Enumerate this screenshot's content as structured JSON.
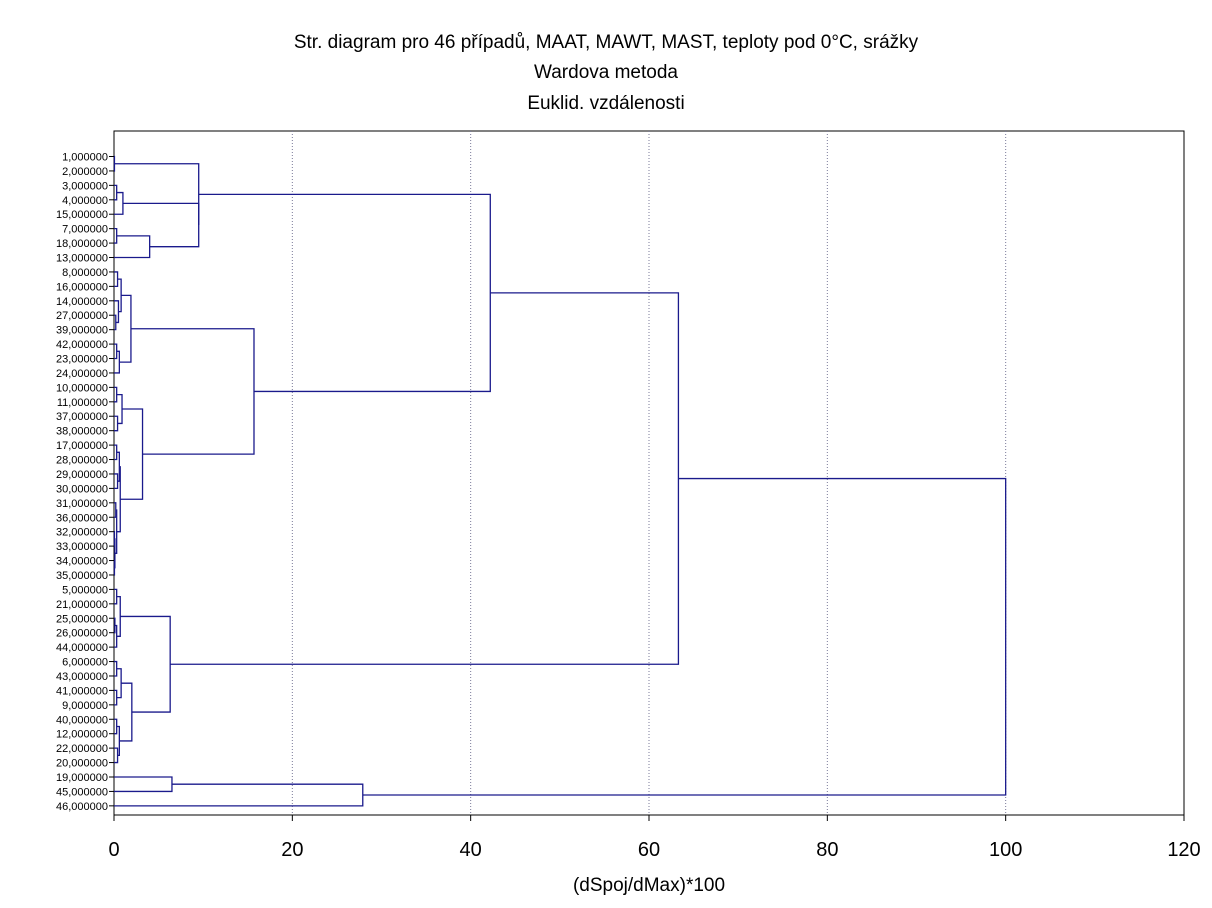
{
  "chart_data": {
    "type": "dendrogram",
    "title": "Str. diagram pro 46 případů, MAAT, MAWT, MAST, teploty pod 0°C, srážky",
    "subtitle": "Wardova metoda",
    "subtitle2": "Euklid. vzdálenosti",
    "xlabel": "(dSpoj/dMax)*100",
    "xlim": [
      0,
      120
    ],
    "xticks": [
      "0",
      "20",
      "40",
      "60",
      "80",
      "100",
      "120"
    ],
    "grid": "vertical-dotted",
    "line_color": "#1a1a8c",
    "leaves": [
      "1,000000",
      "2,000000",
      "3,000000",
      "4,000000",
      "15,000000",
      "7,000000",
      "18,000000",
      "13,000000",
      "8,000000",
      "16,000000",
      "14,000000",
      "27,000000",
      "39,000000",
      "42,000000",
      "23,000000",
      "24,000000",
      "10,000000",
      "11,000000",
      "37,000000",
      "38,000000",
      "17,000000",
      "28,000000",
      "29,000000",
      "30,000000",
      "31,000000",
      "36,000000",
      "32,000000",
      "33,000000",
      "34,000000",
      "35,000000",
      "5,000000",
      "21,000000",
      "25,000000",
      "26,000000",
      "44,000000",
      "6,000000",
      "43,000000",
      "41,000000",
      "9,000000",
      "40,000000",
      "12,000000",
      "22,000000",
      "20,000000",
      "19,000000",
      "45,000000",
      "46,000000"
    ],
    "merges": [
      {
        "a": 0,
        "b": 1,
        "h": 0.05
      },
      {
        "a": 2,
        "b": 3,
        "h": 0.3
      },
      {
        "a": "m1",
        "b": 4,
        "h": 1.0
      },
      {
        "a": 5,
        "b": 6,
        "h": 0.3
      },
      {
        "a": "m3",
        "b": 7,
        "h": 4.0
      },
      {
        "a": "m2",
        "b": "m4",
        "h": 9.5
      },
      {
        "a": "m0",
        "b": "m5",
        "h": 9.5
      },
      {
        "a": 8,
        "b": 9,
        "h": 0.4
      },
      {
        "a": 11,
        "b": 12,
        "h": 0.2
      },
      {
        "a": 10,
        "b": "m8",
        "h": 0.5
      },
      {
        "a": "m7",
        "b": "m9",
        "h": 0.8
      },
      {
        "a": 13,
        "b": 14,
        "h": 0.3
      },
      {
        "a": "m11",
        "b": 15,
        "h": 0.6
      },
      {
        "a": "m10",
        "b": "m12",
        "h": 1.9
      },
      {
        "a": 16,
        "b": 17,
        "h": 0.3
      },
      {
        "a": 18,
        "b": 19,
        "h": 0.4
      },
      {
        "a": "m14",
        "b": "m15",
        "h": 0.9
      },
      {
        "a": 20,
        "b": 21,
        "h": 0.3
      },
      {
        "a": 22,
        "b": 23,
        "h": 0.4
      },
      {
        "a": "m17",
        "b": "m18",
        "h": 0.6
      },
      {
        "a": 24,
        "b": 25,
        "h": 0.2
      },
      {
        "a": 26,
        "b": 27,
        "h": 0.05
      },
      {
        "a": 28,
        "b": 29,
        "h": 0.05
      },
      {
        "a": "m21",
        "b": "m22",
        "h": 0.1
      },
      {
        "a": "m20",
        "b": "m23",
        "h": 0.3
      },
      {
        "a": "m19",
        "b": "m24",
        "h": 0.7
      },
      {
        "a": "m16",
        "b": "m25",
        "h": 3.2
      },
      {
        "a": "m13",
        "b": "m26",
        "h": 15.7
      },
      {
        "a": "m6",
        "b": "m27",
        "h": 42.2
      },
      {
        "a": 30,
        "b": 31,
        "h": 0.3
      },
      {
        "a": 32,
        "b": 33,
        "h": 0.1
      },
      {
        "a": "m30",
        "b": 34,
        "h": 0.3
      },
      {
        "a": "m29",
        "b": "m31",
        "h": 0.7
      },
      {
        "a": 35,
        "b": 36,
        "h": 0.3
      },
      {
        "a": 37,
        "b": 38,
        "h": 0.3
      },
      {
        "a": "m33",
        "b": "m34",
        "h": 0.8
      },
      {
        "a": 39,
        "b": 40,
        "h": 0.3
      },
      {
        "a": 41,
        "b": 42,
        "h": 0.4
      },
      {
        "a": "m36",
        "b": "m37",
        "h": 0.6
      },
      {
        "a": "m35",
        "b": "m38",
        "h": 2.0
      },
      {
        "a": "m32",
        "b": "m39",
        "h": 6.3
      },
      {
        "a": "m28",
        "b": "m40",
        "h": 63.3
      },
      {
        "a": 43,
        "b": 44,
        "h": 6.5
      },
      {
        "a": "m42",
        "b": 45,
        "h": 27.9
      },
      {
        "a": "m41",
        "b": "m43",
        "h": 100.0
      }
    ]
  }
}
